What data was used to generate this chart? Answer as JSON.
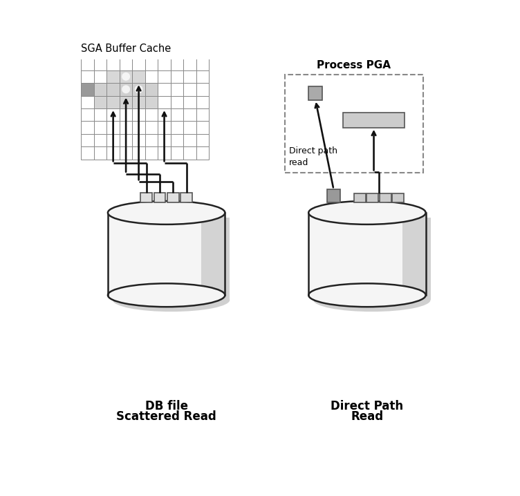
{
  "bg_color": "#ffffff",
  "left_label_line1": "DB file",
  "left_label_line2": "Scattered Read",
  "right_label_line1": "Direct Path",
  "right_label_line2": "Read",
  "sga_title": "SGA Buffer Cache",
  "pga_title": "Process PGA",
  "direct_path_label": "Direct path\nread",
  "grid_color": "#888888",
  "dark_cell_color": "#999999",
  "white_cell_color": "#ffffff",
  "highlight_row_color": "#cccccc",
  "cylinder_face": "#f5f5f5",
  "cylinder_shadow": "#d0d0d0",
  "cylinder_edge": "#222222",
  "arrow_color": "#111111",
  "dashed_box_color": "#888888",
  "text_color": "#000000",
  "block_face": "#e0e0e0",
  "block_edge": "#555555",
  "dark_block_face": "#999999",
  "seq_block_face": "#cccccc",
  "pga_sq_face": "#aaaaaa",
  "pga_rect_face": "#cccccc"
}
